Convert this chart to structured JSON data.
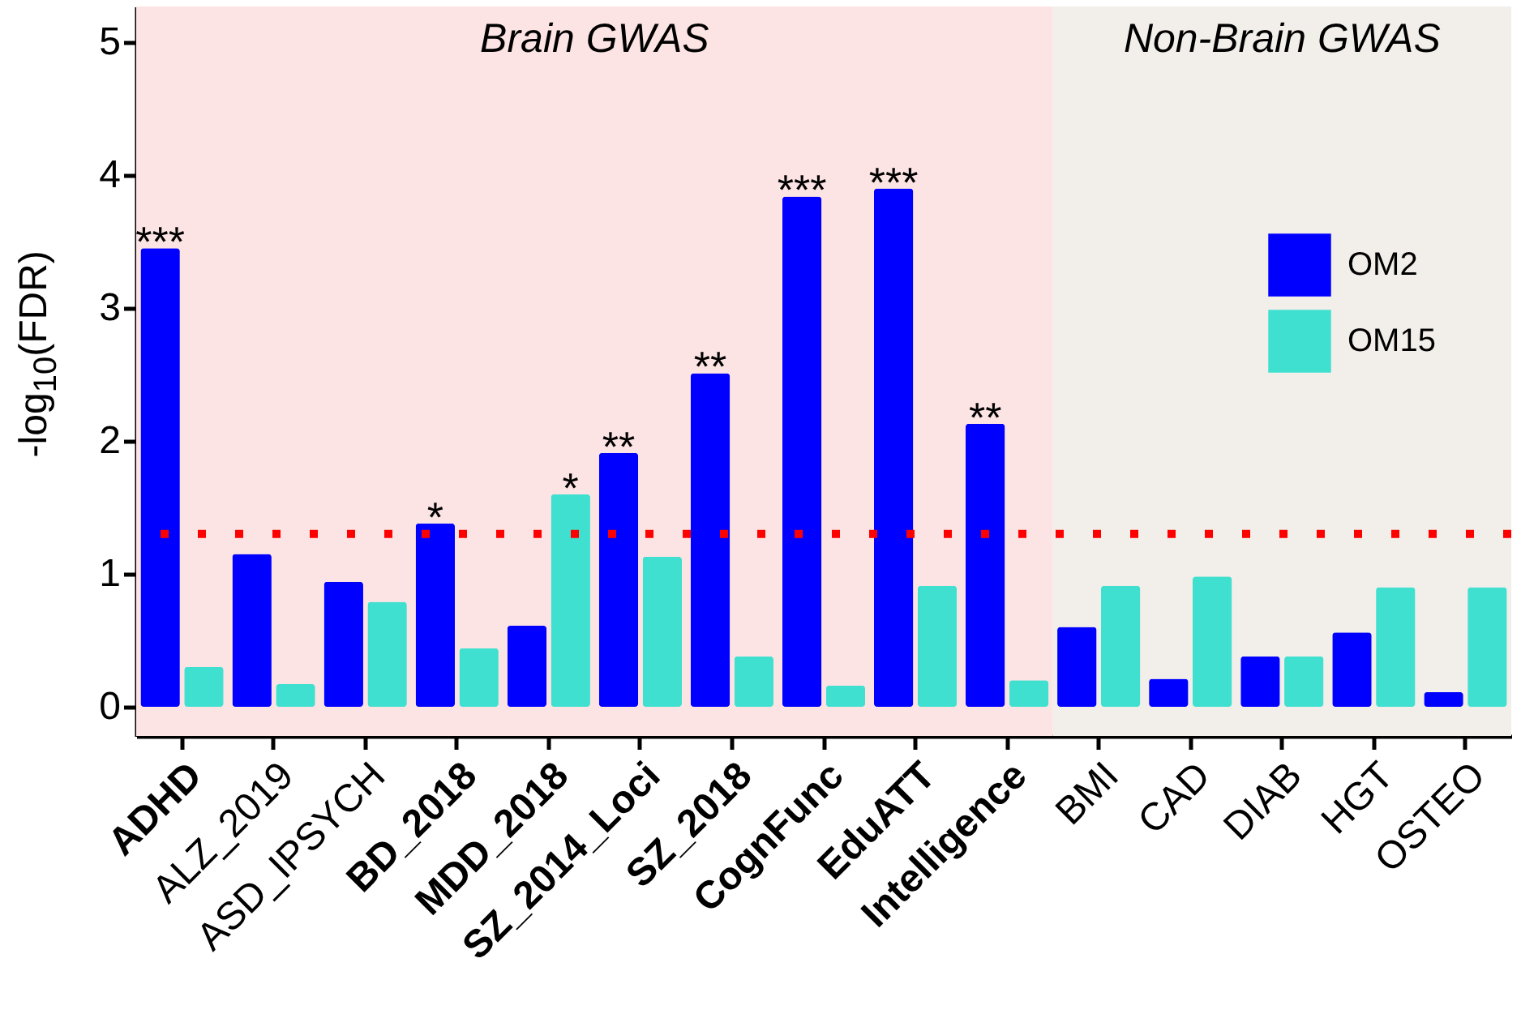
{
  "chart_data": {
    "type": "bar",
    "ylabel": "-log$_{10}$(FDR)",
    "categories": [
      "ADHD",
      "ALZ_2019",
      "ASD_IPSYCH",
      "BD_2018",
      "MDD_2018",
      "SZ_2014_Loci",
      "SZ_2018",
      "CognFunc",
      "EduATT",
      "Intelligence",
      "BMI",
      "CAD",
      "DIAB",
      "HGT",
      "OSTEO"
    ],
    "series": [
      {
        "name": "OM2",
        "color": "#0000ff",
        "values": [
          3.45,
          1.15,
          0.94,
          1.38,
          0.61,
          1.91,
          2.51,
          3.84,
          3.9,
          2.13,
          0.6,
          0.21,
          0.38,
          0.56,
          0.11
        ]
      },
      {
        "name": "OM15",
        "color": "#40e0d0",
        "values": [
          0.3,
          0.17,
          0.79,
          0.44,
          1.6,
          1.13,
          0.38,
          0.16,
          0.91,
          0.2,
          0.91,
          0.98,
          0.38,
          0.9,
          0.9
        ]
      }
    ],
    "ylim": [
      -0.22,
      5.27
    ],
    "yticks": [
      0,
      1,
      2,
      3,
      4,
      5
    ],
    "ref_lines": [
      {
        "axis": "y",
        "value": 1.3,
        "color": "#ff0000",
        "line_style": "dotted"
      }
    ],
    "bands": [
      {
        "axis": "x",
        "from": "ADHD",
        "to": "Intelligence",
        "label": "Brain GWAS",
        "color": "#fde4e4"
      },
      {
        "axis": "x",
        "from": "BMI",
        "to": "OSTEO",
        "label": "Non-Brain GWAS",
        "color": "#f2eee9"
      }
    ],
    "annotations": [
      {
        "text": "***",
        "x": "ADHD",
        "y": 3.45
      },
      {
        "text": "*",
        "x": "BD_2018",
        "y": 1.38
      },
      {
        "text": "*",
        "x": "MDD_2018",
        "y": 1.6
      },
      {
        "text": "**",
        "x": "SZ_2014_Loci",
        "y": 1.91
      },
      {
        "text": "**",
        "x": "SZ_2018",
        "y": 2.51
      },
      {
        "text": "***",
        "x": "CognFunc",
        "y": 3.84
      },
      {
        "text": "***",
        "x": "EduATT",
        "y": 3.9
      },
      {
        "text": "**",
        "x": "Intelligence",
        "y": 2.13
      }
    ],
    "legend": "right",
    "grid": false
  }
}
